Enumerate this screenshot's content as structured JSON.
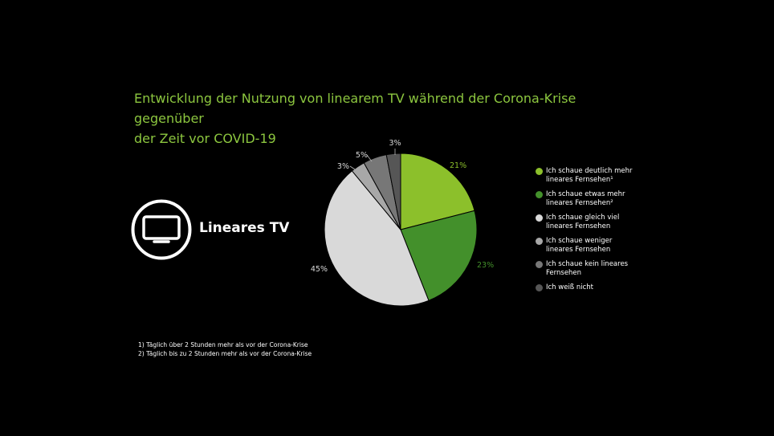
{
  "title": {
    "line1": "Entwicklung der Nutzung von linearem TV während der Corona-Krise gegenüber",
    "line2": "der Zeit vor COVID-19"
  },
  "icon": {
    "name": "tv-icon",
    "label": "Lineares TV"
  },
  "footnotes": [
    "1) Täglich über 2 Stunden mehr als vor der Corona-Krise",
    "2) Täglich bis zu 2 Stunden mehr als vor der Corona-Krise"
  ],
  "colors": {
    "background": "#000000",
    "title": "#8cc63f",
    "slices": [
      "#8cc02b",
      "#43902b",
      "#d9d9d9",
      "#a8a8a8",
      "#777777",
      "#565656"
    ]
  },
  "chart_data": {
    "type": "pie",
    "start_angle": "12 o'clock",
    "direction": "clockwise",
    "legend_position": "right",
    "labels": [
      "Ich schaue deutlich mehr lineares Fernsehen¹",
      "Ich schaue etwas mehr lineares Fernsehen²",
      "Ich schaue gleich viel lineares Fernsehen",
      "Ich schaue weniger lineares Fernsehen",
      "Ich schaue kein lineares Fernsehen",
      "Ich weiß nicht"
    ],
    "legend_lines": [
      [
        "Ich schaue deutlich mehr",
        "lineares Fernsehen¹"
      ],
      [
        "Ich schaue etwas mehr",
        "lineares Fernsehen²"
      ],
      [
        "Ich schaue gleich viel",
        "lineares Fernsehen"
      ],
      [
        "Ich schaue weniger",
        "lineares Fernsehen"
      ],
      [
        "Ich schaue kein lineares",
        "Fernsehen"
      ],
      [
        "Ich weiß nicht"
      ]
    ],
    "values": [
      21,
      23,
      45,
      3,
      5,
      3
    ],
    "value_labels": [
      "21%",
      "23%",
      "45%",
      "3%",
      "5%",
      "3%"
    ]
  }
}
